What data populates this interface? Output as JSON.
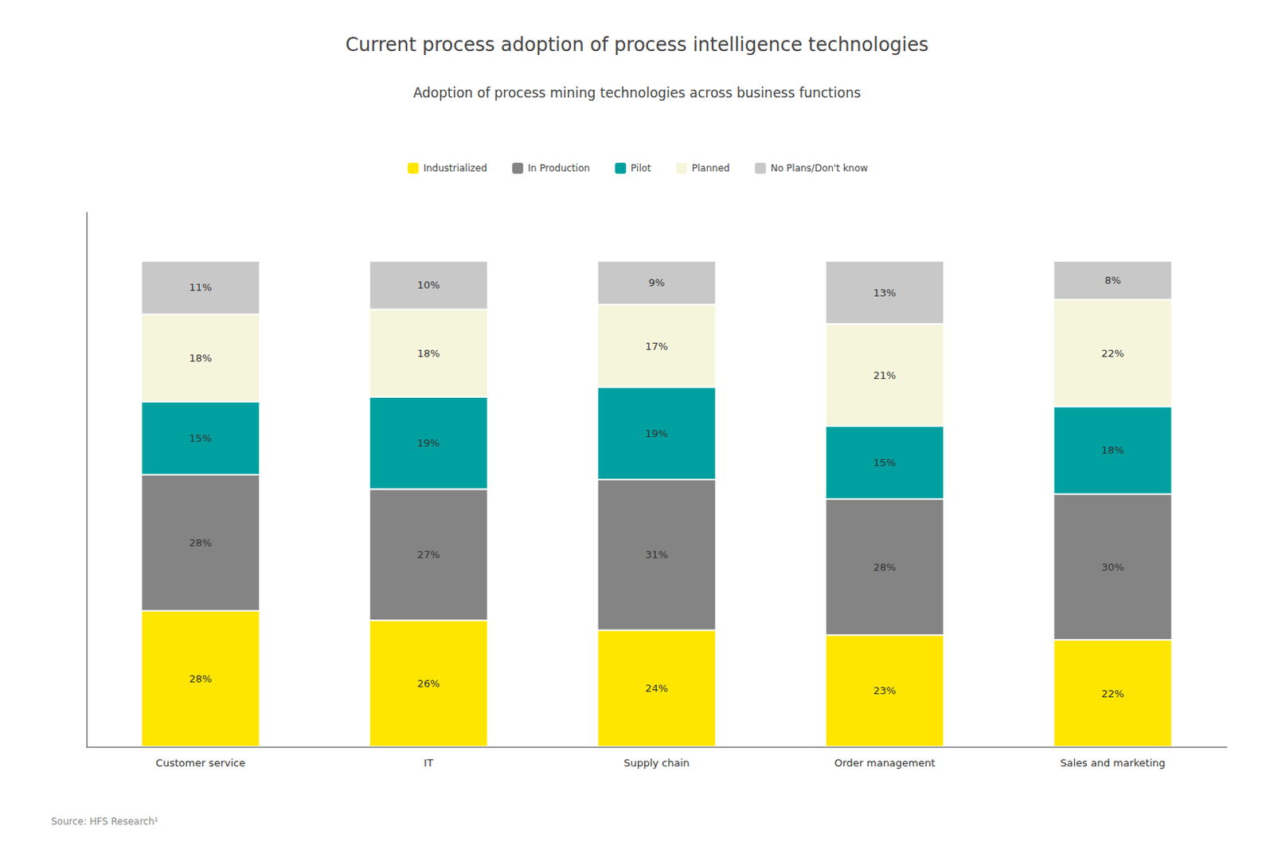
{
  "chart_data": {
    "type": "bar",
    "title": "Current process adoption of process intelligence technologies",
    "subtitle": "Adoption of process mining technologies across business functions",
    "source": "Source: HFS Research¹",
    "categories": [
      "Customer service",
      "IT",
      "Supply chain",
      "Order management",
      "Sales and marketing"
    ],
    "series": [
      {
        "name": "Industrialized",
        "color": "#FFE600",
        "values": [
          28,
          26,
          24,
          23,
          22
        ],
        "value_labels": [
          "28%",
          "26%",
          "24%",
          "23%",
          "22%"
        ]
      },
      {
        "name": "In Production",
        "color": "#848484",
        "values": [
          28,
          27,
          31,
          28,
          30
        ],
        "value_labels": [
          "28%",
          "27%",
          "31%",
          "28%",
          "30%"
        ]
      },
      {
        "name": "Pilot",
        "color": "#00A0A0",
        "values": [
          15,
          19,
          19,
          15,
          18
        ],
        "value_labels": [
          "15%",
          "19%",
          "19%",
          "15%",
          "18%"
        ]
      },
      {
        "name": "Planned",
        "color": "#F5F5DC",
        "values": [
          18,
          18,
          17,
          21,
          22
        ],
        "value_labels": [
          "18%",
          "18%",
          "17%",
          "21%",
          "22%"
        ]
      },
      {
        "name": "No Plans/Don't know",
        "color": "#C8C8C8",
        "values": [
          11,
          10,
          9,
          13,
          8
        ],
        "value_labels": [
          "11%",
          "10%",
          "9%",
          "13%",
          "8%"
        ]
      }
    ],
    "stacked": true,
    "data_labels": true,
    "ylim": [
      0,
      110
    ],
    "yticks": [],
    "tick_labels": "x",
    "grid": false,
    "legend": "top"
  }
}
